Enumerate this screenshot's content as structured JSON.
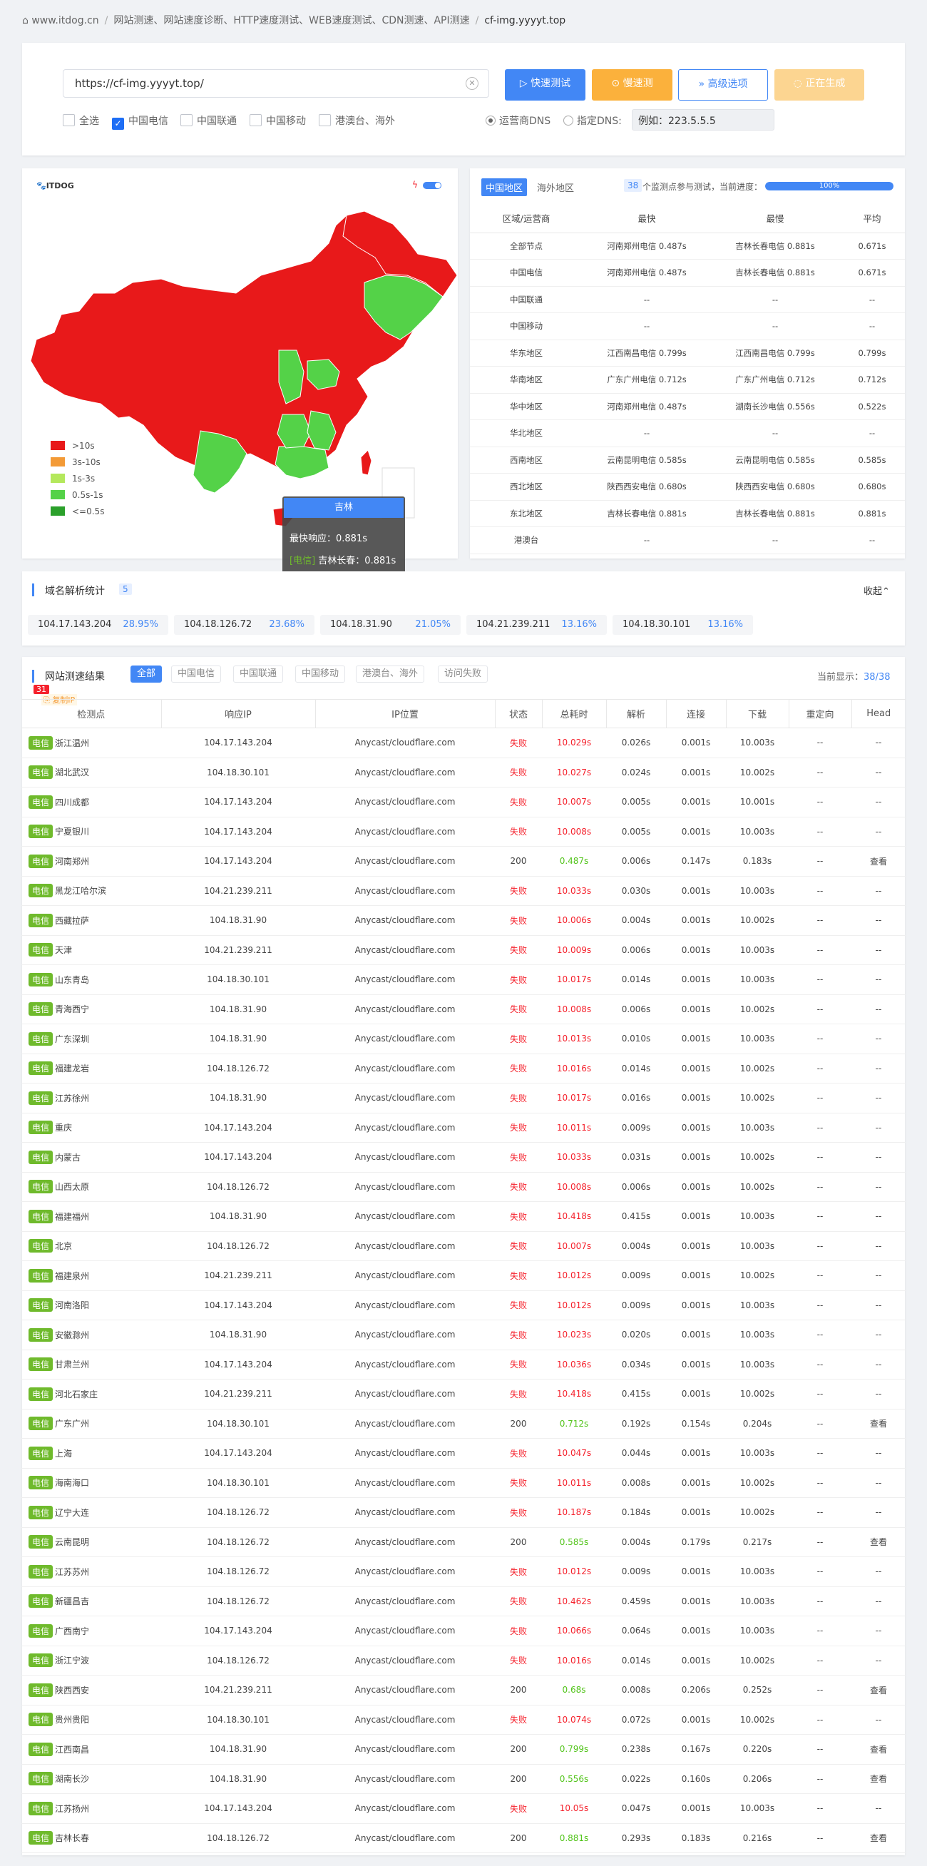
{
  "breadcrumb": {
    "home": "www.itdog.cn",
    "items": [
      "网站测速、网站速度诊断、HTTP速度测试、WEB速度测试、CDN测速、API测速",
      "cf-img.yyyyt.top"
    ]
  },
  "search": {
    "url": "https://cf-img.yyyyt.top/",
    "btn_fast": "快速测试",
    "btn_slow": "慢速测",
    "btn_advanced": "高级选项",
    "btn_generating": "正在生成",
    "checks": [
      {
        "label": "全选",
        "checked": false
      },
      {
        "label": "中国电信",
        "checked": true
      },
      {
        "label": "中国联通",
        "checked": false
      },
      {
        "label": "中国移动",
        "checked": false
      },
      {
        "label": "港澳台、海外",
        "checked": false
      }
    ],
    "dns_isp": "运营商DNS",
    "dns_custom": "指定DNS:",
    "dns_placeholder": "例如：223.5.5.5"
  },
  "map": {
    "logo": "ITDOG",
    "legend": [
      {
        "label": ">10s",
        "color": "#e8191a"
      },
      {
        "label": "3s-10s",
        "color": "#f39a36"
      },
      {
        "label": "1s-3s",
        "color": "#b4e85c"
      },
      {
        "label": "0.5s-1s",
        "color": "#54d248"
      },
      {
        "label": "<=0.5s",
        "color": "#2ba02b"
      }
    ],
    "tooltip": {
      "title": "吉林",
      "fastest": "最快响应：0.881s",
      "detail_tag": "[电信]",
      "detail": "吉林长春：0.881s"
    }
  },
  "stats": {
    "tab_cn": "中国地区",
    "tab_overseas": "海外地区",
    "count": "38",
    "progress_text": "个监测点参与测试，当前进度：",
    "progress": "100%",
    "progress_value": 1.0,
    "headers": [
      "区域/运营商",
      "最快",
      "最慢",
      "平均"
    ],
    "rows": [
      [
        "全部节点",
        "河南郑州电信 0.487s",
        "吉林长春电信 0.881s",
        "0.671s"
      ],
      [
        "中国电信",
        "河南郑州电信 0.487s",
        "吉林长春电信 0.881s",
        "0.671s"
      ],
      [
        "中国联通",
        "--",
        "--",
        "--"
      ],
      [
        "中国移动",
        "--",
        "--",
        "--"
      ],
      [
        "华东地区",
        "江西南昌电信 0.799s",
        "江西南昌电信 0.799s",
        "0.799s"
      ],
      [
        "华南地区",
        "广东广州电信 0.712s",
        "广东广州电信 0.712s",
        "0.712s"
      ],
      [
        "华中地区",
        "河南郑州电信 0.487s",
        "湖南长沙电信 0.556s",
        "0.522s"
      ],
      [
        "华北地区",
        "--",
        "--",
        "--"
      ],
      [
        "西南地区",
        "云南昆明电信 0.585s",
        "云南昆明电信 0.585s",
        "0.585s"
      ],
      [
        "西北地区",
        "陕西西安电信 0.680s",
        "陕西西安电信 0.680s",
        "0.680s"
      ],
      [
        "东北地区",
        "吉林长春电信 0.881s",
        "吉林长春电信 0.881s",
        "0.881s"
      ],
      [
        "港澳台",
        "--",
        "--",
        "--"
      ]
    ]
  },
  "dns": {
    "title": "域名解析统计",
    "count": "5",
    "collapse": "收起",
    "ips": [
      [
        "104.17.143.204",
        "28.95%"
      ],
      [
        "104.18.126.72",
        "23.68%"
      ],
      [
        "104.18.31.90",
        "21.05%"
      ],
      [
        "104.21.239.211",
        "13.16%"
      ],
      [
        "104.18.30.101",
        "13.16%"
      ]
    ]
  },
  "results": {
    "title": "网站测速结果",
    "badge": "31",
    "copy_ip": "复制IP",
    "tabs": [
      "全部",
      "中国电信",
      "中国联通",
      "中国移动",
      "港澳台、海外",
      "访问失败"
    ],
    "display_label": "当前显示：",
    "display_count": "38/38",
    "isp": "电信",
    "headers": [
      "检测点",
      "响应IP",
      "IP位置",
      "状态",
      "总耗时",
      "解析",
      "连接",
      "下载",
      "重定向",
      "Head"
    ],
    "rows": [
      [
        "浙江温州",
        "104.17.143.204",
        "Anycast/cloudflare.com",
        "失败",
        "10.029s",
        "0.026s",
        "0.001s",
        "10.003s",
        "--",
        "--"
      ],
      [
        "湖北武汉",
        "104.18.30.101",
        "Anycast/cloudflare.com",
        "失败",
        "10.027s",
        "0.024s",
        "0.001s",
        "10.002s",
        "--",
        "--"
      ],
      [
        "四川成都",
        "104.17.143.204",
        "Anycast/cloudflare.com",
        "失败",
        "10.007s",
        "0.005s",
        "0.001s",
        "10.001s",
        "--",
        "--"
      ],
      [
        "宁夏银川",
        "104.17.143.204",
        "Anycast/cloudflare.com",
        "失败",
        "10.008s",
        "0.005s",
        "0.001s",
        "10.003s",
        "--",
        "--"
      ],
      [
        "河南郑州",
        "104.17.143.204",
        "Anycast/cloudflare.com",
        "200",
        "0.487s",
        "0.006s",
        "0.147s",
        "0.183s",
        "--",
        "查看"
      ],
      [
        "黑龙江哈尔滨",
        "104.21.239.211",
        "Anycast/cloudflare.com",
        "失败",
        "10.033s",
        "0.030s",
        "0.001s",
        "10.003s",
        "--",
        "--"
      ],
      [
        "西藏拉萨",
        "104.18.31.90",
        "Anycast/cloudflare.com",
        "失败",
        "10.006s",
        "0.004s",
        "0.001s",
        "10.002s",
        "--",
        "--"
      ],
      [
        "天津",
        "104.21.239.211",
        "Anycast/cloudflare.com",
        "失败",
        "10.009s",
        "0.006s",
        "0.001s",
        "10.003s",
        "--",
        "--"
      ],
      [
        "山东青岛",
        "104.18.30.101",
        "Anycast/cloudflare.com",
        "失败",
        "10.017s",
        "0.014s",
        "0.001s",
        "10.003s",
        "--",
        "--"
      ],
      [
        "青海西宁",
        "104.18.31.90",
        "Anycast/cloudflare.com",
        "失败",
        "10.008s",
        "0.006s",
        "0.001s",
        "10.002s",
        "--",
        "--"
      ],
      [
        "广东深圳",
        "104.18.31.90",
        "Anycast/cloudflare.com",
        "失败",
        "10.013s",
        "0.010s",
        "0.001s",
        "10.003s",
        "--",
        "--"
      ],
      [
        "福建龙岩",
        "104.18.126.72",
        "Anycast/cloudflare.com",
        "失败",
        "10.016s",
        "0.014s",
        "0.001s",
        "10.002s",
        "--",
        "--"
      ],
      [
        "江苏徐州",
        "104.18.31.90",
        "Anycast/cloudflare.com",
        "失败",
        "10.017s",
        "0.016s",
        "0.001s",
        "10.002s",
        "--",
        "--"
      ],
      [
        "重庆",
        "104.17.143.204",
        "Anycast/cloudflare.com",
        "失败",
        "10.011s",
        "0.009s",
        "0.001s",
        "10.003s",
        "--",
        "--"
      ],
      [
        "内蒙古",
        "104.17.143.204",
        "Anycast/cloudflare.com",
        "失败",
        "10.033s",
        "0.031s",
        "0.001s",
        "10.002s",
        "--",
        "--"
      ],
      [
        "山西太原",
        "104.18.126.72",
        "Anycast/cloudflare.com",
        "失败",
        "10.008s",
        "0.006s",
        "0.001s",
        "10.002s",
        "--",
        "--"
      ],
      [
        "福建福州",
        "104.18.31.90",
        "Anycast/cloudflare.com",
        "失败",
        "10.418s",
        "0.415s",
        "0.001s",
        "10.003s",
        "--",
        "--"
      ],
      [
        "北京",
        "104.18.126.72",
        "Anycast/cloudflare.com",
        "失败",
        "10.007s",
        "0.004s",
        "0.001s",
        "10.003s",
        "--",
        "--"
      ],
      [
        "福建泉州",
        "104.21.239.211",
        "Anycast/cloudflare.com",
        "失败",
        "10.012s",
        "0.009s",
        "0.001s",
        "10.002s",
        "--",
        "--"
      ],
      [
        "河南洛阳",
        "104.17.143.204",
        "Anycast/cloudflare.com",
        "失败",
        "10.012s",
        "0.009s",
        "0.001s",
        "10.003s",
        "--",
        "--"
      ],
      [
        "安徽滁州",
        "104.18.31.90",
        "Anycast/cloudflare.com",
        "失败",
        "10.023s",
        "0.020s",
        "0.001s",
        "10.003s",
        "--",
        "--"
      ],
      [
        "甘肃兰州",
        "104.17.143.204",
        "Anycast/cloudflare.com",
        "失败",
        "10.036s",
        "0.034s",
        "0.001s",
        "10.003s",
        "--",
        "--"
      ],
      [
        "河北石家庄",
        "104.21.239.211",
        "Anycast/cloudflare.com",
        "失败",
        "10.418s",
        "0.415s",
        "0.001s",
        "10.002s",
        "--",
        "--"
      ],
      [
        "广东广州",
        "104.18.30.101",
        "Anycast/cloudflare.com",
        "200",
        "0.712s",
        "0.192s",
        "0.154s",
        "0.204s",
        "--",
        "查看"
      ],
      [
        "上海",
        "104.17.143.204",
        "Anycast/cloudflare.com",
        "失败",
        "10.047s",
        "0.044s",
        "0.001s",
        "10.003s",
        "--",
        "--"
      ],
      [
        "海南海口",
        "104.18.30.101",
        "Anycast/cloudflare.com",
        "失败",
        "10.011s",
        "0.008s",
        "0.001s",
        "10.002s",
        "--",
        "--"
      ],
      [
        "辽宁大连",
        "104.18.126.72",
        "Anycast/cloudflare.com",
        "失败",
        "10.187s",
        "0.184s",
        "0.001s",
        "10.002s",
        "--",
        "--"
      ],
      [
        "云南昆明",
        "104.18.126.72",
        "Anycast/cloudflare.com",
        "200",
        "0.585s",
        "0.004s",
        "0.179s",
        "0.217s",
        "--",
        "查看"
      ],
      [
        "江苏苏州",
        "104.18.126.72",
        "Anycast/cloudflare.com",
        "失败",
        "10.012s",
        "0.009s",
        "0.001s",
        "10.003s",
        "--",
        "--"
      ],
      [
        "新疆昌吉",
        "104.18.126.72",
        "Anycast/cloudflare.com",
        "失败",
        "10.462s",
        "0.459s",
        "0.001s",
        "10.003s",
        "--",
        "--"
      ],
      [
        "广西南宁",
        "104.17.143.204",
        "Anycast/cloudflare.com",
        "失败",
        "10.066s",
        "0.064s",
        "0.001s",
        "10.003s",
        "--",
        "--"
      ],
      [
        "浙江宁波",
        "104.18.126.72",
        "Anycast/cloudflare.com",
        "失败",
        "10.016s",
        "0.014s",
        "0.001s",
        "10.002s",
        "--",
        "--"
      ],
      [
        "陕西西安",
        "104.21.239.211",
        "Anycast/cloudflare.com",
        "200",
        "0.68s",
        "0.008s",
        "0.206s",
        "0.252s",
        "--",
        "查看"
      ],
      [
        "贵州贵阳",
        "104.18.30.101",
        "Anycast/cloudflare.com",
        "失败",
        "10.074s",
        "0.072s",
        "0.001s",
        "10.002s",
        "--",
        "--"
      ],
      [
        "江西南昌",
        "104.18.31.90",
        "Anycast/cloudflare.com",
        "200",
        "0.799s",
        "0.238s",
        "0.167s",
        "0.220s",
        "--",
        "查看"
      ],
      [
        "湖南长沙",
        "104.18.31.90",
        "Anycast/cloudflare.com",
        "200",
        "0.556s",
        "0.022s",
        "0.160s",
        "0.206s",
        "--",
        "查看"
      ],
      [
        "江苏扬州",
        "104.17.143.204",
        "Anycast/cloudflare.com",
        "失败",
        "10.05s",
        "0.047s",
        "0.001s",
        "10.003s",
        "--",
        "--"
      ],
      [
        "吉林长春",
        "104.18.126.72",
        "Anycast/cloudflare.com",
        "200",
        "0.881s",
        "0.293s",
        "0.183s",
        "0.216s",
        "--",
        "查看"
      ]
    ]
  }
}
